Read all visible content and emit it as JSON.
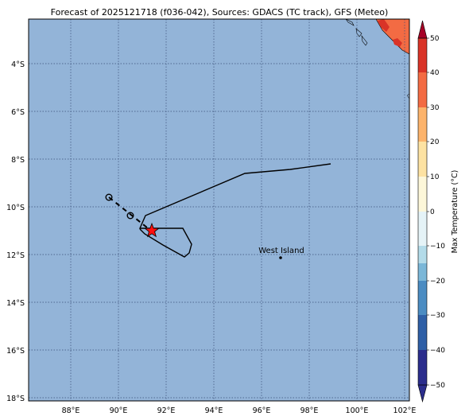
{
  "title": "Forecast of 2025121718 (f036-042), Sources: GDACS (TC track), GFS (Meteo)",
  "map": {
    "ocean_color": "#93b4d8",
    "lat_labels": [
      "4°S",
      "6°S",
      "8°S",
      "10°S",
      "12°S",
      "14°S",
      "16°S",
      "18°S"
    ],
    "lon_labels": [
      "88°E",
      "90°E",
      "92°E",
      "94°E",
      "96°E",
      "98°E",
      "100°E",
      "102°E"
    ],
    "place_label": "West Island"
  },
  "colorbar": {
    "label": "Max Temperature (°C)",
    "tick_labels": [
      "50",
      "40",
      "30",
      "20",
      "10",
      "0",
      "−10",
      "−20",
      "−30",
      "−40",
      "−50"
    ],
    "colors": [
      "#2b2d8c",
      "#2e5fa6",
      "#4b8cc2",
      "#7bb7d8",
      "#b3dbe9",
      "#e5f3f7",
      "#fdf7d9",
      "#fde2a2",
      "#fcb36b",
      "#f36b43",
      "#d93327",
      "#a50026"
    ]
  }
}
